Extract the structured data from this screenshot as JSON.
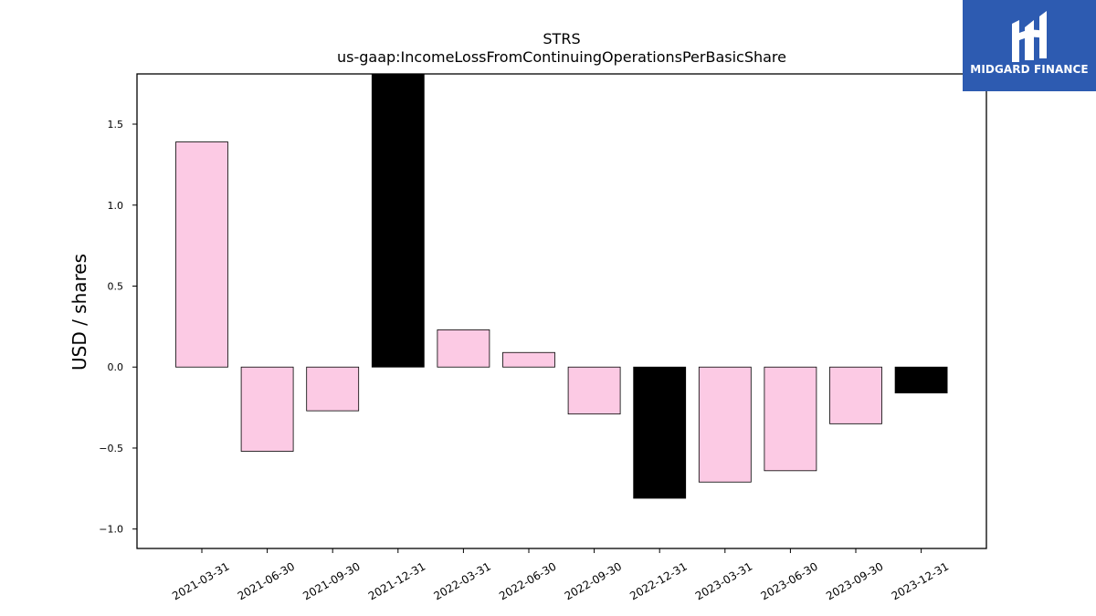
{
  "brand": {
    "name": "MIDGARD FINANCE",
    "bg_color": "#2d5bb1"
  },
  "chart_data": {
    "type": "bar",
    "title": "STRS",
    "subtitle": "us-gaap:IncomeLossFromContinuingOperationsPerBasicShare",
    "xlabel": "",
    "ylabel": "USD / shares",
    "categories": [
      "2021-03-31",
      "2021-06-30",
      "2021-09-30",
      "2021-12-31",
      "2022-03-31",
      "2022-06-30",
      "2022-09-30",
      "2022-12-31",
      "2023-03-31",
      "2023-06-30",
      "2023-09-30",
      "2023-12-31"
    ],
    "values": [
      1.39,
      -0.52,
      -0.27,
      1.85,
      0.23,
      0.09,
      -0.29,
      -0.81,
      -0.71,
      -0.64,
      -0.35,
      -0.16
    ],
    "bar_colors": [
      "#fccae4",
      "#fccae4",
      "#fccae4",
      "#000000",
      "#fccae4",
      "#fccae4",
      "#fccae4",
      "#000000",
      "#fccae4",
      "#fccae4",
      "#fccae4",
      "#000000"
    ],
    "ylim": [
      -1.12,
      1.81
    ],
    "yticks": [
      -1.0,
      -0.5,
      0.0,
      0.5,
      1.0,
      1.5
    ],
    "ytick_labels": [
      "−1.0",
      "−0.5",
      "0.0",
      "0.5",
      "1.0",
      "1.5"
    ],
    "grid": false,
    "legend": "none"
  }
}
